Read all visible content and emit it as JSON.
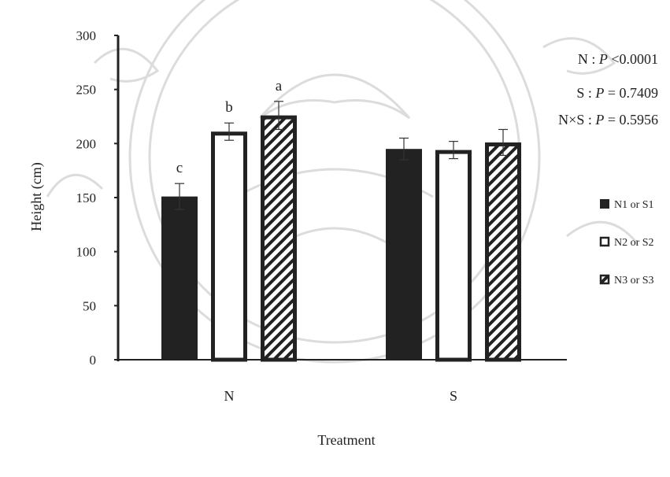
{
  "chart_data": {
    "type": "bar",
    "xlabel": "Treatment",
    "ylabel": "Height (cm)",
    "ylim": [
      0,
      300
    ],
    "yticks": [
      0,
      50,
      100,
      150,
      200,
      250,
      300
    ],
    "categories": [
      "N",
      "S"
    ],
    "series": [
      {
        "name": "N1 or S1",
        "values": [
          151,
          195
        ],
        "errors": [
          12,
          10
        ],
        "fill": "solid"
      },
      {
        "name": "N2 or S2",
        "values": [
          211,
          194
        ],
        "errors": [
          8,
          8
        ],
        "fill": "white"
      },
      {
        "name": "N3 or S3",
        "values": [
          226,
          201
        ],
        "errors": [
          13,
          12
        ],
        "fill": "hatched"
      }
    ],
    "significance_letters": [
      [
        "c",
        "b",
        "a"
      ],
      [
        "",
        "",
        ""
      ]
    ],
    "stats": [
      {
        "prefix": "N : ",
        "p": "P",
        "op": " <",
        "value": "0.0001"
      },
      {
        "prefix": "S : ",
        "p": "P",
        "op": " = ",
        "value": " 0.7409"
      },
      {
        "prefix": "N×S : ",
        "p": "P",
        "op": " = ",
        "value": "0.5956"
      }
    ],
    "legend_position": "right",
    "grid": false,
    "colors": {
      "bar_dark": "#222222",
      "outline": "#222222",
      "background": "#ffffff",
      "watermark": "#d9d9d9"
    }
  }
}
